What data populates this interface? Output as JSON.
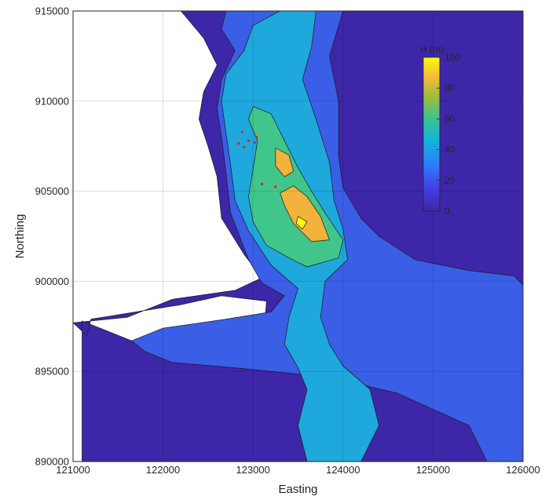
{
  "chart_data": {
    "type": "contour",
    "xlabel": "Easting",
    "ylabel": "Northing",
    "xlim": [
      121000,
      126000
    ],
    "ylim": [
      890000,
      915000
    ],
    "xticks": [
      "121000",
      "122000",
      "123000",
      "124000",
      "125000",
      "126000"
    ],
    "yticks": [
      "890000",
      "895000",
      "900000",
      "905000",
      "910000",
      "915000"
    ],
    "grid": true,
    "colorbar": {
      "title": "H (m)",
      "min": 0,
      "max": 100,
      "ticks": [
        "0",
        "20",
        "40",
        "60",
        "80",
        "100"
      ],
      "placement": "inside-top-right"
    },
    "levels": [
      {
        "value": 0,
        "color": "#3e26a8"
      },
      {
        "value": 20,
        "color": "#3a5ee6"
      },
      {
        "value": 40,
        "color": "#1fa8dc"
      },
      {
        "value": 60,
        "color": "#40c68a"
      },
      {
        "value": 80,
        "color": "#f2b23c"
      },
      {
        "value": 100,
        "color": "#f9fb0e"
      }
    ],
    "regions": [
      {
        "level": 0,
        "points": [
          [
            122400,
            915000
          ],
          [
            126000,
            915000
          ],
          [
            126000,
            890000
          ],
          [
            121100,
            890000
          ],
          [
            121100,
            897800
          ],
          [
            121800,
            896400
          ],
          [
            122400,
            895800
          ],
          [
            123100,
            896000
          ],
          [
            123150,
            898900
          ],
          [
            122650,
            899200
          ],
          [
            122200,
            898700
          ],
          [
            121700,
            898300
          ],
          [
            121200,
            897900
          ],
          [
            121150,
            897000
          ],
          [
            121000,
            897700
          ],
          [
            121600,
            898000
          ],
          [
            122100,
            899000
          ],
          [
            122800,
            899500
          ],
          [
            123100,
            900200
          ],
          [
            122900,
            901500
          ],
          [
            122650,
            903500
          ],
          [
            122600,
            905800
          ],
          [
            122500,
            907500
          ],
          [
            122400,
            909000
          ],
          [
            122450,
            910500
          ],
          [
            122600,
            912000
          ],
          [
            122450,
            913500
          ],
          [
            122200,
            915000
          ]
        ]
      },
      {
        "level": 1,
        "points": [
          [
            122700,
            915000
          ],
          [
            124000,
            915000
          ],
          [
            123850,
            912500
          ],
          [
            123950,
            910000
          ],
          [
            123950,
            907000
          ],
          [
            124000,
            905200
          ],
          [
            124200,
            903500
          ],
          [
            124400,
            902500
          ],
          [
            124800,
            901200
          ],
          [
            125400,
            900600
          ],
          [
            125900,
            900300
          ],
          [
            126000,
            899800
          ],
          [
            126000,
            890000
          ],
          [
            125600,
            890000
          ],
          [
            125400,
            892000
          ],
          [
            124600,
            893800
          ],
          [
            124000,
            894500
          ],
          [
            123600,
            894800
          ],
          [
            122800,
            895200
          ],
          [
            122100,
            895500
          ],
          [
            121800,
            896100
          ],
          [
            121650,
            896700
          ],
          [
            122000,
            897400
          ],
          [
            122700,
            897900
          ],
          [
            123200,
            898300
          ],
          [
            123350,
            899200
          ],
          [
            123100,
            899900
          ],
          [
            122950,
            901200
          ],
          [
            122750,
            903800
          ],
          [
            122700,
            906000
          ],
          [
            122650,
            908000
          ],
          [
            122600,
            909600
          ],
          [
            122650,
            911200
          ],
          [
            122800,
            912800
          ],
          [
            122650,
            914000
          ]
        ]
      },
      {
        "level": 2,
        "points": [
          [
            123300,
            915000
          ],
          [
            123700,
            915000
          ],
          [
            123650,
            913000
          ],
          [
            123550,
            911200
          ],
          [
            123700,
            909000
          ],
          [
            123850,
            906600
          ],
          [
            123900,
            904500
          ],
          [
            124000,
            902900
          ],
          [
            124050,
            901200
          ],
          [
            123800,
            900000
          ],
          [
            123750,
            898000
          ],
          [
            123850,
            896500
          ],
          [
            124000,
            895300
          ],
          [
            124300,
            894000
          ],
          [
            124400,
            892000
          ],
          [
            124200,
            890000
          ],
          [
            123600,
            890000
          ],
          [
            123500,
            892000
          ],
          [
            123600,
            894000
          ],
          [
            123500,
            895200
          ],
          [
            123350,
            896500
          ],
          [
            123400,
            898000
          ],
          [
            123500,
            899600
          ],
          [
            123200,
            900900
          ],
          [
            122950,
            902800
          ],
          [
            122800,
            904500
          ],
          [
            122750,
            906500
          ],
          [
            122700,
            908200
          ],
          [
            122650,
            910000
          ],
          [
            122700,
            911500
          ],
          [
            122900,
            912800
          ],
          [
            123000,
            914200
          ]
        ]
      },
      {
        "level": 3,
        "points": [
          [
            123000,
            909700
          ],
          [
            123200,
            909300
          ],
          [
            123350,
            907800
          ],
          [
            123500,
            906300
          ],
          [
            123650,
            905000
          ],
          [
            123800,
            903800
          ],
          [
            124000,
            902300
          ],
          [
            123950,
            901300
          ],
          [
            123600,
            900800
          ],
          [
            123400,
            901300
          ],
          [
            123150,
            902000
          ],
          [
            123000,
            903300
          ],
          [
            122950,
            904700
          ],
          [
            123000,
            906200
          ],
          [
            123050,
            907800
          ],
          [
            122950,
            909000
          ]
        ]
      },
      {
        "level": 4,
        "points": [
          [
            123250,
            907400
          ],
          [
            123400,
            907000
          ],
          [
            123450,
            906100
          ],
          [
            123350,
            905800
          ],
          [
            123250,
            906400
          ]
        ]
      },
      {
        "level": 4,
        "points": [
          [
            123450,
            905300
          ],
          [
            123600,
            904700
          ],
          [
            123750,
            903600
          ],
          [
            123850,
            902300
          ],
          [
            123650,
            902200
          ],
          [
            123450,
            903200
          ],
          [
            123350,
            904200
          ],
          [
            123300,
            904900
          ]
        ]
      },
      {
        "level": 5,
        "points": [
          [
            123500,
            903600
          ],
          [
            123600,
            903300
          ],
          [
            123550,
            902900
          ],
          [
            123480,
            903200
          ]
        ]
      }
    ],
    "markers": [
      [
        122880,
        908300
      ],
      [
        122950,
        907800
      ],
      [
        122900,
        907450
      ],
      [
        123020,
        907700
      ],
      [
        123040,
        908000
      ],
      [
        122840,
        907650
      ],
      [
        123100,
        905400
      ],
      [
        123250,
        905250
      ]
    ]
  }
}
